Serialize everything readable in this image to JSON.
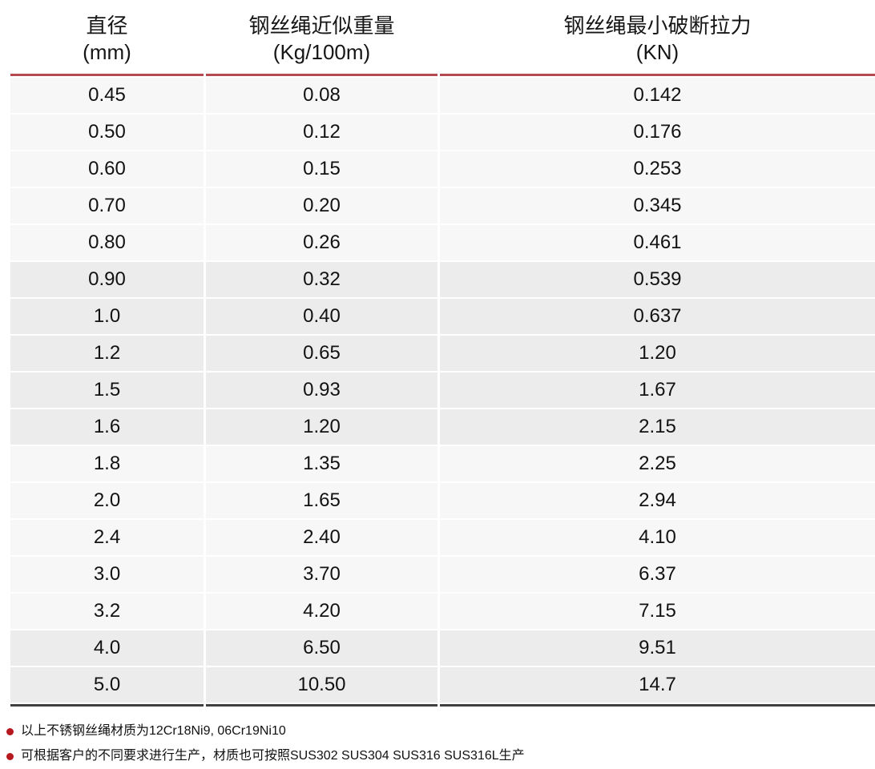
{
  "table": {
    "columns": [
      {
        "line1": "直径",
        "line2": "(mm)"
      },
      {
        "line1": "钢丝绳近似重量",
        "line2": "(Kg/100m)"
      },
      {
        "line1": "钢丝绳最小破断拉力",
        "line2": "(KN)"
      }
    ],
    "rows": [
      [
        "0.45",
        "0.08",
        "0.142"
      ],
      [
        "0.50",
        "0.12",
        "0.176"
      ],
      [
        "0.60",
        "0.15",
        "0.253"
      ],
      [
        "0.70",
        "0.20",
        "0.345"
      ],
      [
        "0.80",
        "0.26",
        "0.461"
      ],
      [
        "0.90",
        "0.32",
        "0.539"
      ],
      [
        "1.0",
        "0.40",
        "0.637"
      ],
      [
        "1.2",
        "0.65",
        "1.20"
      ],
      [
        "1.5",
        "0.93",
        "1.67"
      ],
      [
        "1.6",
        "1.20",
        "2.15"
      ],
      [
        "1.8",
        "1.35",
        "2.25"
      ],
      [
        "2.0",
        "1.65",
        "2.94"
      ],
      [
        "2.4",
        "2.40",
        "4.10"
      ],
      [
        "3.0",
        "3.70",
        "6.37"
      ],
      [
        "3.2",
        "4.20",
        "7.15"
      ],
      [
        "4.0",
        "6.50",
        "9.51"
      ],
      [
        "5.0",
        "10.50",
        "14.7"
      ]
    ]
  },
  "notes": [
    "以上不锈钢丝绳材质为12Cr18Ni9, 06Cr19Ni10",
    "可根据客户的不同要求进行生产，材质也可按照SUS302 SUS304 SUS316 SUS316L生产"
  ],
  "colors": {
    "accent_red": "#b5494f",
    "bullet_red": "#b6181e",
    "row_light": "#f7f7f7",
    "row_dark": "#ececec",
    "border_dark": "#404040"
  }
}
